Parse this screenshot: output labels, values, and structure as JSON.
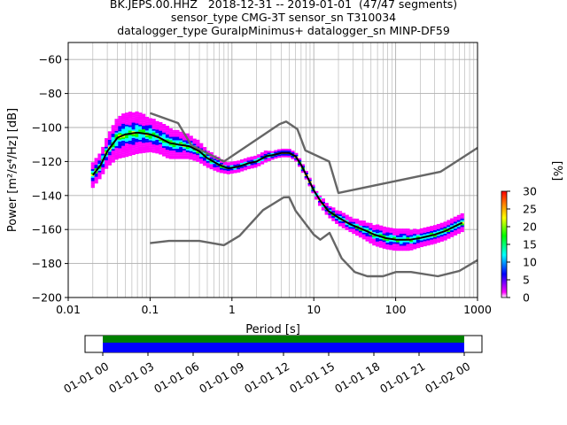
{
  "title_lines": [
    "BK.JEPS.00.HHZ   2018-12-31 -- 2019-01-01  (47/47 segments)",
    "sensor_type CMG-3T sensor_sn T310034",
    "datalogger_type GuralpMinimus+ datalogger_sn MINP-DF59"
  ],
  "colorbar": {
    "label": "[%]",
    "ticks": [
      "0",
      "5",
      "10",
      "15",
      "20",
      "25",
      "30"
    ],
    "range": [
      0,
      30
    ]
  },
  "timeline": {
    "ticks": [
      "01-01 00",
      "01-01 03",
      "01-01 06",
      "01-01 09",
      "01-01 12",
      "01-01 15",
      "01-01 18",
      "01-01 21",
      "01-02 00"
    ],
    "bar_colors": {
      "top": "#008000",
      "bottom": "#0000ff"
    }
  },
  "chart_data": {
    "type": "line",
    "title": "BK.JEPS.00.HHZ   2018-12-31 -- 2019-01-01  (47/47 segments)",
    "xlabel": "Period [s]",
    "ylabel": "Power [m²/s⁴/Hz] [dB]",
    "x_scale": "log",
    "xlim": [
      0.01,
      1000
    ],
    "ylim": [
      -200,
      -50
    ],
    "xticks": [
      "0.01",
      "0.1",
      "1",
      "10",
      "100",
      "1000"
    ],
    "yticks": [
      "−200",
      "−180",
      "−160",
      "−140",
      "−120",
      "−100",
      "−80",
      "−60"
    ],
    "ytick_values": [
      -200,
      -180,
      -160,
      -140,
      -120,
      -100,
      -80,
      -60
    ],
    "xtick_values": [
      0.01,
      0.1,
      1,
      10,
      100,
      1000
    ],
    "grid": true,
    "series": [
      {
        "role": "high-noise-model",
        "color": "#666666",
        "x": [
          0.1,
          0.22,
          0.32,
          0.8,
          3.8,
          4.6,
          6.3,
          7.9,
          15.4,
          20,
          354.8,
          1000
        ],
        "y": [
          -91.5,
          -97.4,
          -110.5,
          -120,
          -98,
          -96.5,
          -101,
          -113.5,
          -120,
          -138.5,
          -126,
          -112
        ]
      },
      {
        "role": "low-noise-model",
        "color": "#666666",
        "x": [
          0.1,
          0.17,
          0.4,
          0.8,
          1.24,
          2.4,
          4.3,
          5.0,
          6.0,
          10,
          12,
          15.6,
          21.9,
          31.6,
          45,
          70,
          101,
          154,
          328,
          600,
          1000
        ],
        "y": [
          -168,
          -166.7,
          -166.7,
          -169.2,
          -163.7,
          -148.6,
          -141.1,
          -141,
          -149,
          -163,
          -166,
          -162,
          -177,
          -185,
          -187.5,
          -187.5,
          -185,
          -185,
          -187.5,
          -184.4,
          -178
        ]
      },
      {
        "role": "mode",
        "color": "#000000",
        "x": [
          0.02,
          0.025,
          0.03,
          0.04,
          0.05,
          0.07,
          0.1,
          0.13,
          0.17,
          0.22,
          0.3,
          0.4,
          0.5,
          0.7,
          0.9,
          1.2,
          1.6,
          2.0,
          2.6,
          3.3,
          4.0,
          5.0,
          6.0,
          7.0,
          8.5,
          10,
          12,
          15,
          20,
          28,
          40,
          55,
          75,
          100,
          150,
          200,
          300,
          400,
          650
        ],
        "y": [
          -128,
          -122,
          -114,
          -106,
          -104,
          -103,
          -104,
          -106,
          -109,
          -110,
          -111,
          -114,
          -118,
          -122,
          -124,
          -123,
          -121,
          -120,
          -117,
          -116,
          -115,
          -115,
          -117,
          -122,
          -130,
          -137,
          -143,
          -149,
          -153,
          -157,
          -160,
          -163,
          -165,
          -166,
          -166,
          -165,
          -163,
          -161,
          -156
        ]
      }
    ],
    "psd_cloud": {
      "x": [
        0.02,
        0.025,
        0.03,
        0.04,
        0.05,
        0.07,
        0.1,
        0.13,
        0.17,
        0.22,
        0.3,
        0.4,
        0.5,
        0.7,
        0.9,
        1.2,
        1.6,
        2.0,
        2.6,
        3.3,
        4.0,
        5.0,
        6.0,
        7.0,
        8.5,
        10,
        12,
        15,
        20,
        28,
        40,
        55,
        75,
        100,
        150,
        200,
        300,
        400,
        650
      ],
      "spread": [
        7,
        7,
        9,
        12,
        13,
        12,
        10,
        9,
        9,
        8,
        7,
        6,
        5,
        4,
        3,
        3,
        3,
        3,
        3,
        2,
        2,
        2,
        2,
        2,
        2,
        2,
        3,
        3,
        4,
        4,
        5,
        6,
        6,
        6,
        6,
        5,
        5,
        5,
        5
      ]
    }
  }
}
